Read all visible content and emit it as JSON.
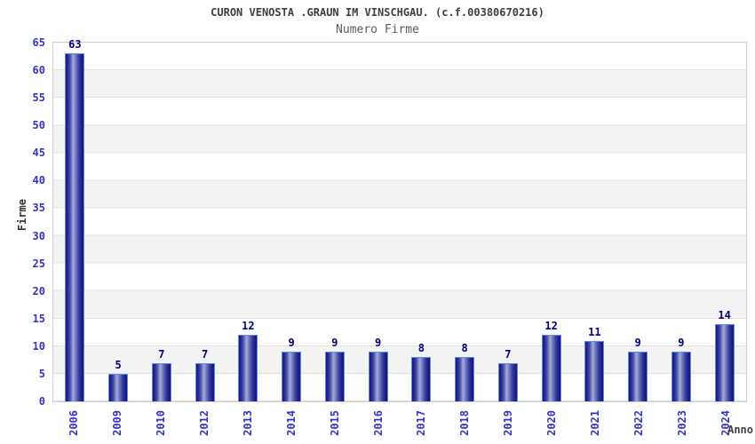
{
  "chart_data": {
    "type": "bar",
    "title": "CURON VENOSTA .GRAUN IM VINSCHGAU. (c.f.00380670216)",
    "subtitle": "Numero Firme",
    "xlabel": "Anno",
    "ylabel": "Firme",
    "categories": [
      "2006",
      "2009",
      "2010",
      "2012",
      "2013",
      "2014",
      "2015",
      "2016",
      "2017",
      "2018",
      "2019",
      "2020",
      "2021",
      "2022",
      "2023",
      "2024"
    ],
    "values": [
      63,
      5,
      7,
      7,
      12,
      9,
      9,
      9,
      8,
      8,
      7,
      12,
      11,
      9,
      9,
      14
    ],
    "ylim": [
      0,
      65
    ],
    "ytick_step": 5,
    "yticks": [
      0,
      5,
      10,
      15,
      20,
      25,
      30,
      35,
      40,
      45,
      50,
      55,
      60,
      65
    ],
    "grid": "horizontal gridlines with alternating white/gray bands",
    "legend": "none",
    "colors": {
      "tick_label": "#3333cc",
      "value_label": "#00007e",
      "bar_dark": "#15157a",
      "bar_light": "#a6abdc",
      "bar_outline": "#5b8df0",
      "band_gray": "#f3f3f3",
      "gridline": "#e0e0e0",
      "title": "#3f3f3f",
      "subtitle": "#5a5a5a",
      "axis_title": "#333333"
    }
  }
}
